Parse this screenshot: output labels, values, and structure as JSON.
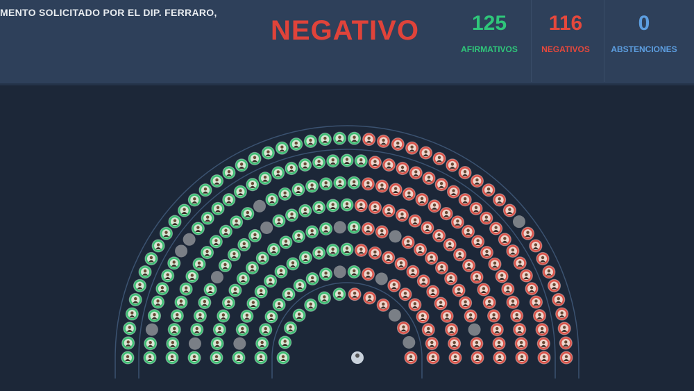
{
  "header": {
    "motion_text": "MENTO SOLICITADO POR EL DIP. FERRARO,",
    "result": "NEGATIVO",
    "stats": [
      {
        "value": "125",
        "label": "AFIRMATIVOS",
        "color": "#2fc67a"
      },
      {
        "value": "116",
        "label": "NEGATIVOS",
        "color": "#e5483c"
      },
      {
        "value": "0",
        "label": "ABSTENCIONES",
        "color": "#5d9ee0"
      }
    ]
  },
  "hemicycle": {
    "afirmativos": 125,
    "negativos": 116,
    "abstenciones": 0,
    "ausentes": 16,
    "colors": {
      "afirmativo": "#3fbf75",
      "negativo": "#d9544a",
      "ausente": "#7a7f86",
      "presidente": "#c9d2dc"
    }
  }
}
